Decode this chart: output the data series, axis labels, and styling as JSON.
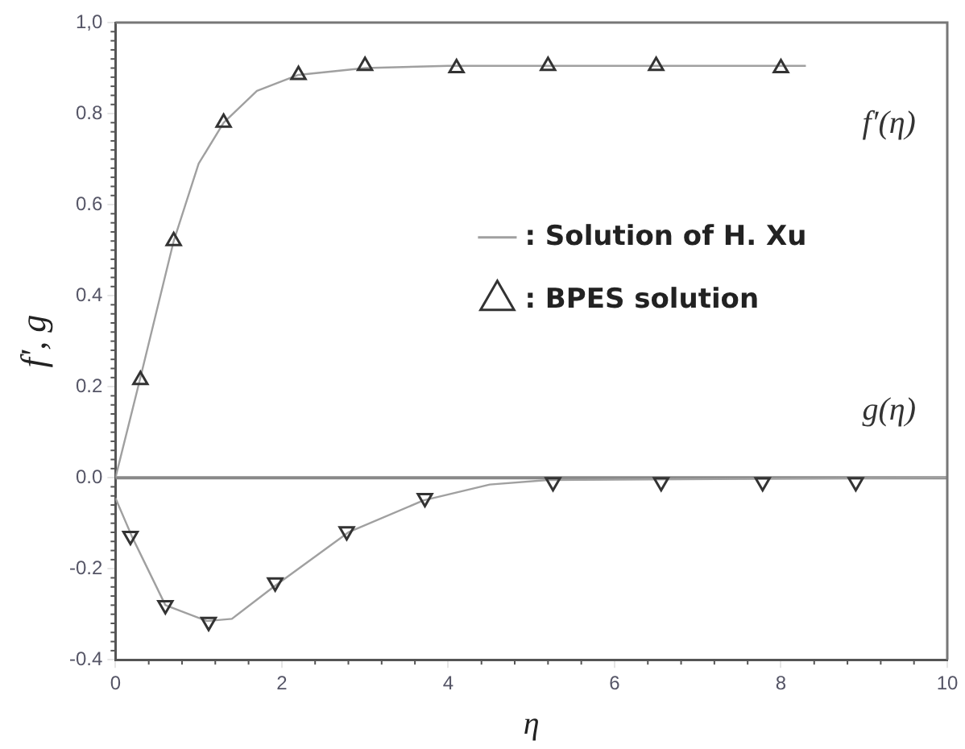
{
  "chart_data": {
    "type": "line",
    "xlabel": "η",
    "ylabel": "f', g",
    "legend": "right",
    "grid": false,
    "xlim": [
      0,
      10
    ],
    "xticks": [
      0,
      2,
      4,
      6,
      8,
      10
    ],
    "ylim": [
      -0.4,
      1.0
    ],
    "yticks": [
      {
        "value": -0.4,
        "label": "-0.4"
      },
      {
        "value": -0.2,
        "label": "-0.2"
      },
      {
        "value": 0,
        "label": "0.0"
      },
      {
        "value": 0.2,
        "label": "0.2"
      },
      {
        "value": 0.4,
        "label": "0.4"
      },
      {
        "value": 0.6,
        "label": "0.6"
      },
      {
        "value": 0.8,
        "label": "0.8"
      },
      {
        "value": 1.0,
        "label": "1,0"
      }
    ],
    "ref_lines": [
      {
        "axis": "y",
        "value": 0,
        "label": null,
        "color": "#888888"
      }
    ],
    "annotations": [
      "f′(η)",
      "g(η)"
    ],
    "series": [
      {
        "type": "line",
        "name": ": Solution of H. Xu",
        "color": "#a0a0a0",
        "marker": "none",
        "x": [
          0,
          0.3,
          0.7,
          1.0,
          1.3,
          1.7,
          2.2,
          3.0,
          4.0,
          5.0,
          6.5,
          8.3
        ],
        "values": [
          0,
          0.22,
          0.52,
          0.69,
          0.78,
          0.85,
          0.885,
          0.9,
          0.905,
          0.905,
          0.905,
          0.905
        ]
      },
      {
        "type": "line",
        "color": "#a0a0a0",
        "marker": "none",
        "x": [
          0,
          0.2,
          0.6,
          1.1,
          1.4,
          1.9,
          2.8,
          3.7,
          4.5,
          5.2,
          10
        ],
        "values": [
          -0.045,
          -0.13,
          -0.28,
          -0.315,
          -0.31,
          -0.24,
          -0.12,
          -0.05,
          -0.015,
          -0.005,
          0
        ]
      },
      {
        "type": "scatter",
        "name": ": BPES solution",
        "color": "#333333",
        "marker": "triangle",
        "x": [
          0.3,
          0.7,
          1.3,
          2.2,
          3.0,
          4.1,
          5.2,
          6.5,
          8.0
        ],
        "values": [
          0.215,
          0.52,
          0.78,
          0.885,
          0.905,
          0.9,
          0.905,
          0.905,
          0.9
        ]
      },
      {
        "type": "scatter",
        "color": "#333333",
        "marker": "triangle",
        "x": [
          0.18,
          0.6,
          1.12,
          1.92,
          2.78,
          3.72,
          5.26,
          6.56,
          7.78,
          8.9
        ],
        "values": [
          -0.128,
          -0.28,
          -0.317,
          -0.23,
          -0.118,
          -0.045,
          -0.01,
          -0.01,
          -0.01,
          -0.01
        ]
      }
    ]
  }
}
